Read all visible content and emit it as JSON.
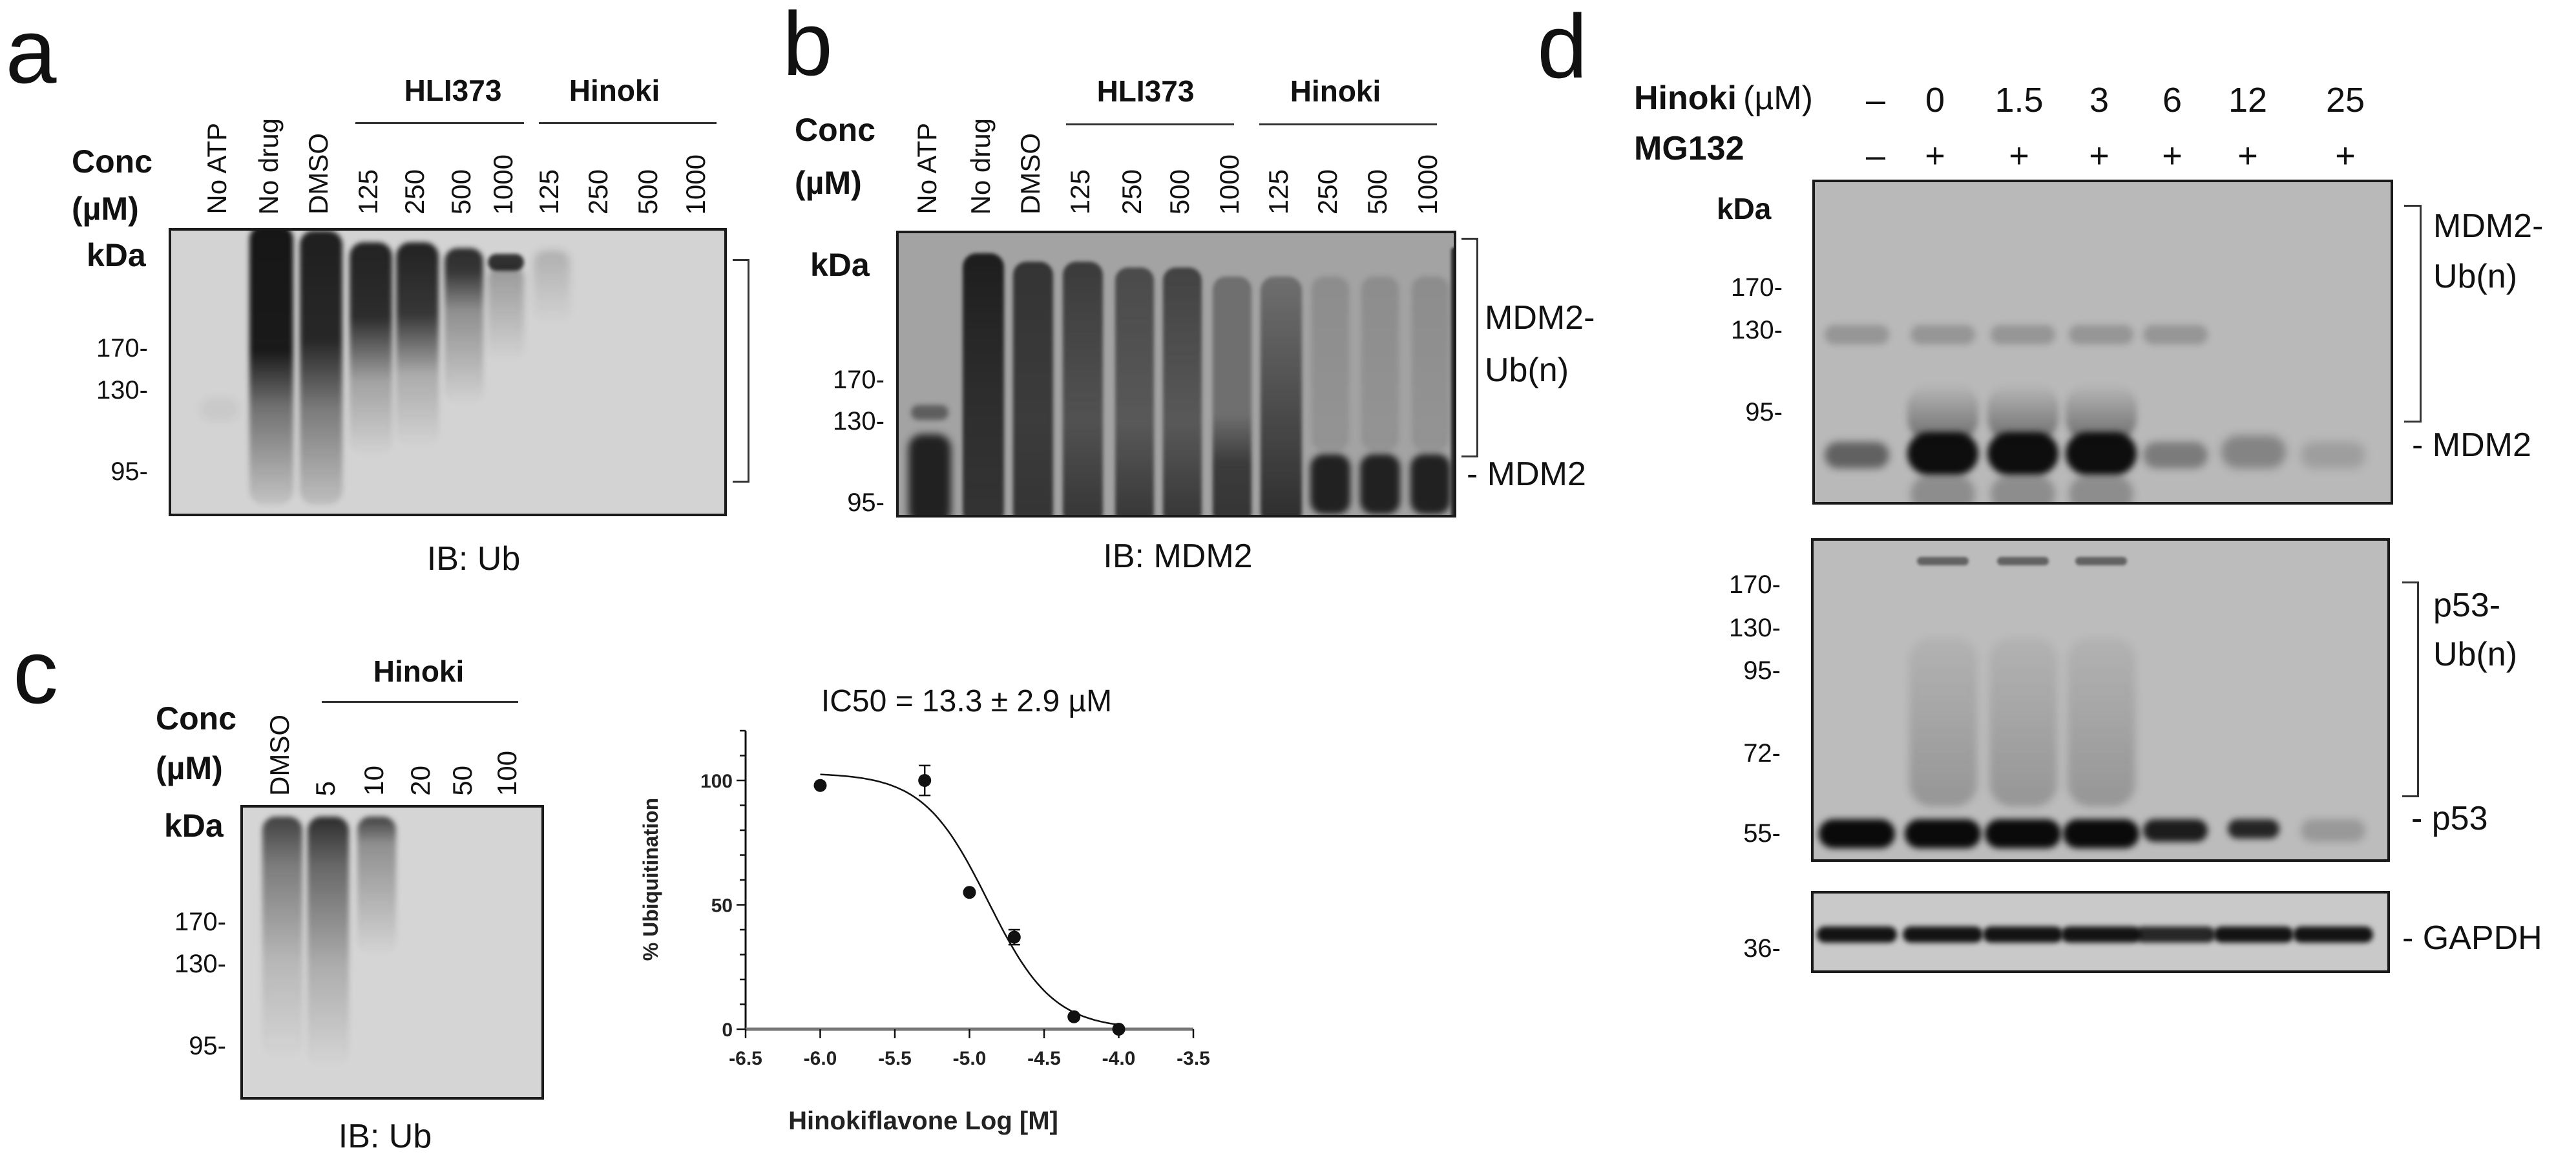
{
  "panels": {
    "a": {
      "letter": "a",
      "conc_label": "Conc",
      "unit_label": "(µM)",
      "kda_label": "kDa",
      "groups": [
        "HLI373",
        "Hinoki"
      ],
      "lanes": [
        "No ATP",
        "No drug",
        "DMSO",
        "125",
        "250",
        "500",
        "1000",
        "125",
        "250",
        "500",
        "1000"
      ],
      "markers": [
        "170-",
        "130-",
        "95-"
      ],
      "immunoblot": "IB: Ub"
    },
    "b": {
      "letter": "b",
      "conc_label": "Conc",
      "unit_label": "(µM)",
      "kda_label": "kDa",
      "groups": [
        "HLI373",
        "Hinoki"
      ],
      "lanes": [
        "No ATP",
        "No drug",
        "DMSO",
        "125",
        "250",
        "500",
        "1000",
        "125",
        "250",
        "500",
        "1000"
      ],
      "markers": [
        "170-",
        "130-",
        "95-"
      ],
      "bracket_label": [
        "MDM2-",
        "Ub(n)"
      ],
      "band_label": "- MDM2",
      "immunoblot": "IB: MDM2"
    },
    "c": {
      "letter": "c",
      "conc_label": "Conc",
      "unit_label": "(µM)",
      "kda_label": "kDa",
      "group": "Hinoki",
      "lanes": [
        "DMSO",
        "5",
        "10",
        "20",
        "50",
        "100"
      ],
      "markers": [
        "170-",
        "130-",
        "95-"
      ],
      "immunoblot": "IB: Ub"
    },
    "d": {
      "letter": "d",
      "row1_label_bold": "Hinoki",
      "row1_label_unit": "(µM)",
      "row1_values": [
        "–",
        "0",
        "1.5",
        "3",
        "6",
        "12",
        "25"
      ],
      "row2_label": "MG132",
      "row2_values": [
        "–",
        "+",
        "+",
        "+",
        "+",
        "+",
        "+"
      ],
      "kda_label": "kDa",
      "blot1": {
        "markers": [
          "170-",
          "130-",
          "95-"
        ],
        "bracket_label": [
          "MDM2-",
          "Ub(n)"
        ],
        "band_label": "- MDM2"
      },
      "blot2": {
        "markers": [
          "170-",
          "130-",
          "95-",
          "72-",
          "55-"
        ],
        "bracket_label": [
          "p53-",
          "Ub(n)"
        ],
        "band_label": "- p53"
      },
      "blot3": {
        "markers": [
          "36-"
        ],
        "band_label": "- GAPDH"
      }
    }
  },
  "chart_data": {
    "type": "scatter",
    "title": "IC50 = 13.3 ± 2.9 µM",
    "xlabel": "Hinokiflavone Log [M]",
    "ylabel": "% Ubiquitination",
    "xlim": [
      -6.5,
      -3.5
    ],
    "ylim": [
      0,
      120
    ],
    "x_ticks": [
      "-6.5",
      "-6.0",
      "-5.5",
      "-5.0",
      "-4.5",
      "-4.0",
      "-3.5"
    ],
    "y_ticks": [
      "0",
      "50",
      "100"
    ],
    "grid": false,
    "legend": "none",
    "points": [
      {
        "x": -6.0,
        "y": 98,
        "err": 0
      },
      {
        "x": -5.3,
        "y": 100,
        "err": 6
      },
      {
        "x": -5.0,
        "y": 55,
        "err": 0
      },
      {
        "x": -4.7,
        "y": 37,
        "err": 3
      },
      {
        "x": -4.3,
        "y": 5,
        "err": 0
      },
      {
        "x": -4.0,
        "y": 0,
        "err": 0
      }
    ],
    "fit_curve": {
      "model": "sigmoidal dose-response",
      "top": 103,
      "bottom": 0,
      "log_ic50": -4.876,
      "hill_slope": -2,
      "x_range": [
        -6.0,
        -4.0
      ]
    }
  }
}
